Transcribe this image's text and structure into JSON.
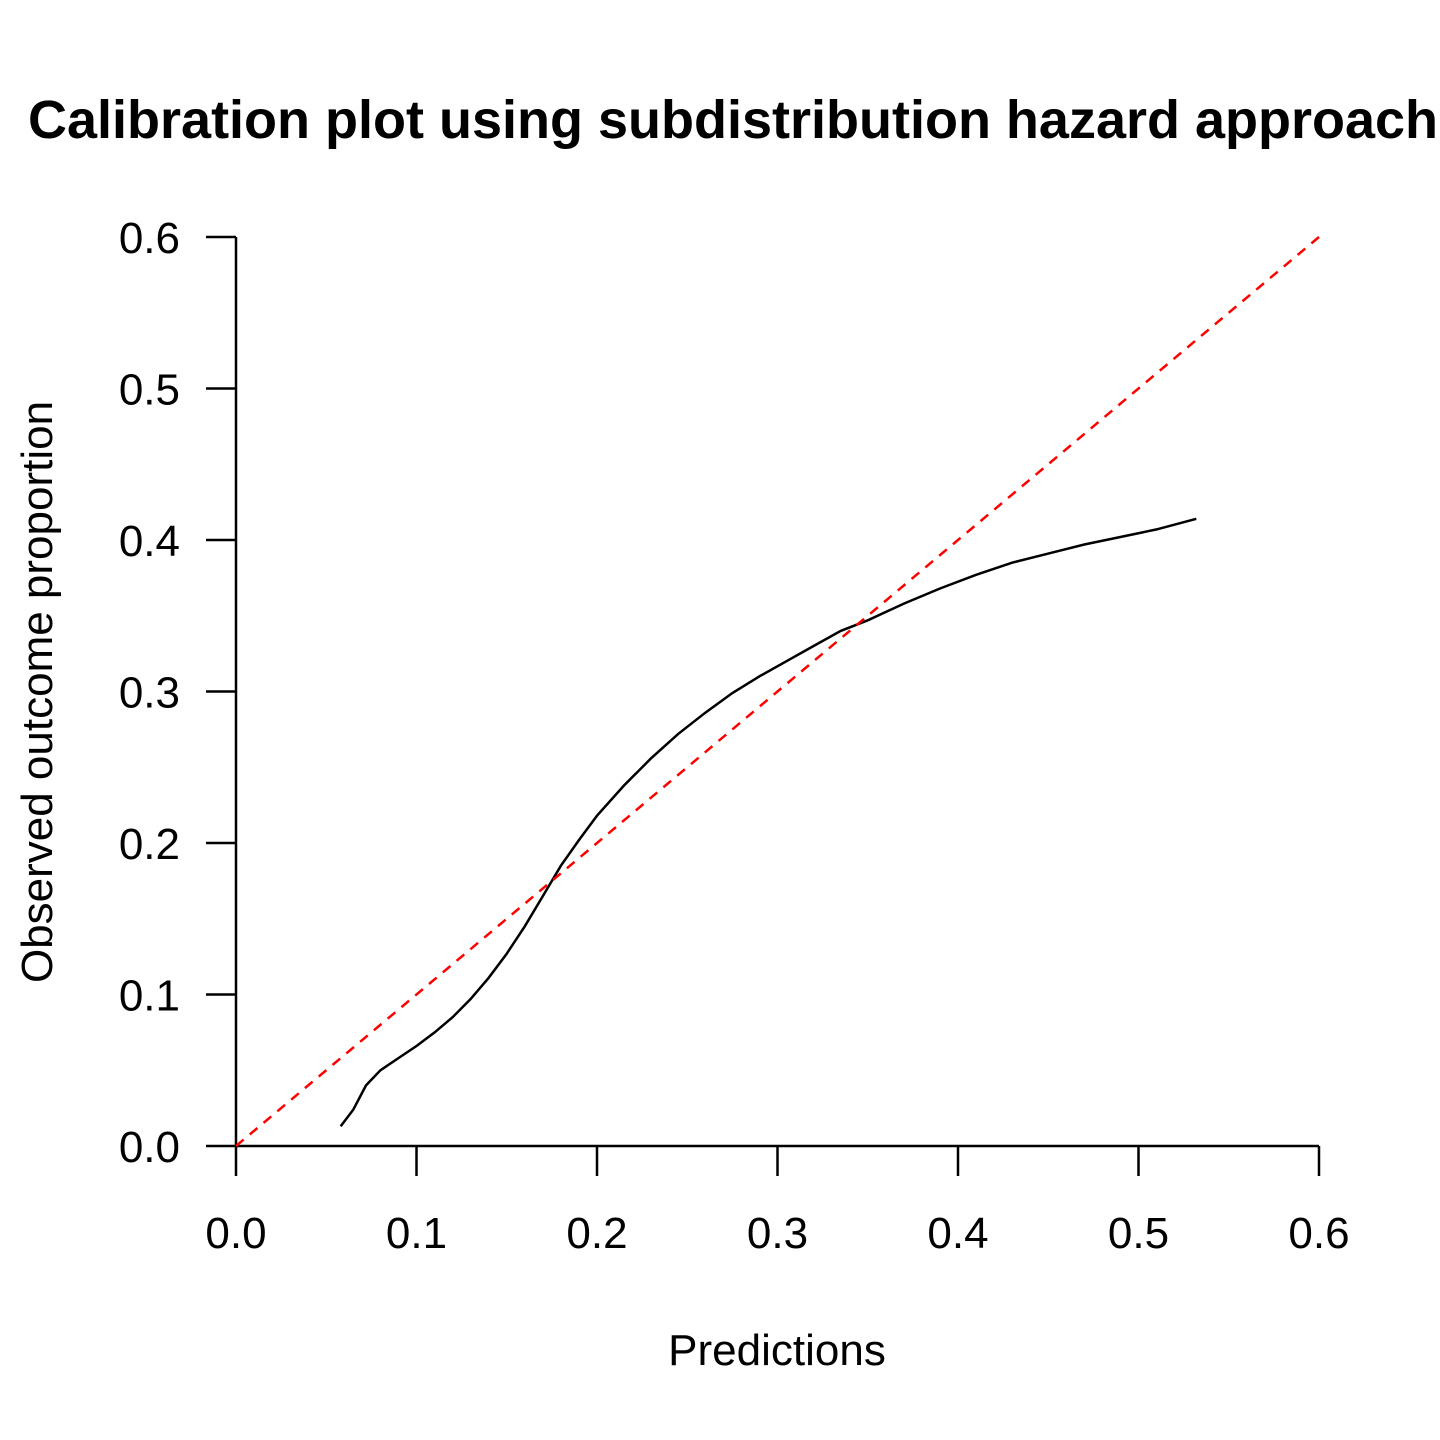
{
  "chart_data": {
    "type": "line",
    "title": "Calibration plot using subdistribution hazard approach",
    "xlabel": "Predictions",
    "ylabel": "Observed outcome proportion",
    "xlim": [
      0,
      0.6
    ],
    "ylim": [
      0,
      0.6
    ],
    "x_ticks": [
      "0.0",
      "0.1",
      "0.2",
      "0.3",
      "0.4",
      "0.5",
      "0.6"
    ],
    "y_ticks": [
      "0.0",
      "0.1",
      "0.2",
      "0.3",
      "0.4",
      "0.5",
      "0.6"
    ],
    "series": [
      {
        "name": "calibration-curve",
        "color": "#000000",
        "style": "solid",
        "x": [
          0.058,
          0.065,
          0.072,
          0.08,
          0.09,
          0.1,
          0.11,
          0.12,
          0.13,
          0.14,
          0.15,
          0.16,
          0.17,
          0.18,
          0.19,
          0.2,
          0.215,
          0.23,
          0.245,
          0.26,
          0.275,
          0.29,
          0.305,
          0.32,
          0.335,
          0.35,
          0.37,
          0.39,
          0.41,
          0.43,
          0.45,
          0.47,
          0.49,
          0.51,
          0.532
        ],
        "y": [
          0.013,
          0.024,
          0.04,
          0.05,
          0.058,
          0.066,
          0.075,
          0.085,
          0.097,
          0.111,
          0.127,
          0.145,
          0.165,
          0.185,
          0.202,
          0.218,
          0.238,
          0.256,
          0.272,
          0.286,
          0.299,
          0.31,
          0.32,
          0.33,
          0.34,
          0.347,
          0.358,
          0.368,
          0.377,
          0.385,
          0.391,
          0.397,
          0.402,
          0.407,
          0.414
        ]
      },
      {
        "name": "reference-line",
        "color": "#ff0000",
        "style": "dashed",
        "x": [
          0,
          0.6
        ],
        "y": [
          0,
          0.6
        ]
      }
    ]
  }
}
